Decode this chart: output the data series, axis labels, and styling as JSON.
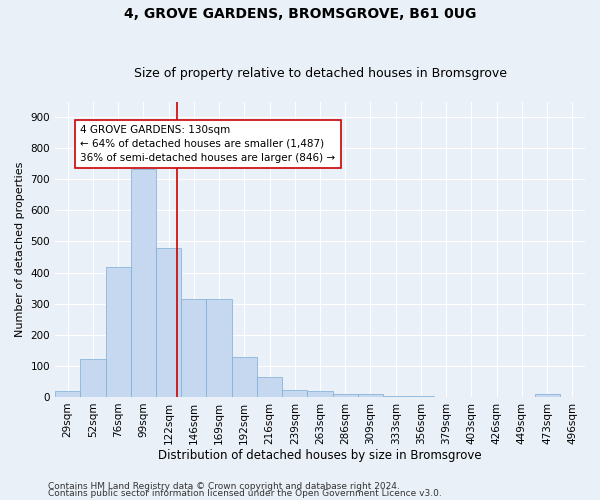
{
  "title1": "4, GROVE GARDENS, BROMSGROVE, B61 0UG",
  "title2": "Size of property relative to detached houses in Bromsgrove",
  "xlabel": "Distribution of detached houses by size in Bromsgrove",
  "ylabel": "Number of detached properties",
  "bar_color": "#c5d8f0",
  "bar_edge_color": "#7aadd4",
  "categories": [
    "29sqm",
    "52sqm",
    "76sqm",
    "99sqm",
    "122sqm",
    "146sqm",
    "169sqm",
    "192sqm",
    "216sqm",
    "239sqm",
    "263sqm",
    "286sqm",
    "309sqm",
    "333sqm",
    "356sqm",
    "379sqm",
    "403sqm",
    "426sqm",
    "449sqm",
    "473sqm",
    "496sqm"
  ],
  "values": [
    18,
    122,
    418,
    733,
    480,
    315,
    315,
    130,
    65,
    22,
    18,
    10,
    8,
    3,
    3,
    0,
    0,
    0,
    0,
    8,
    0
  ],
  "vline_x_index": 4.35,
  "vline_color": "#cc0000",
  "annotation_text": "4 GROVE GARDENS: 130sqm\n← 64% of detached houses are smaller (1,487)\n36% of semi-detached houses are larger (846) →",
  "annotation_box_color": "#ffffff",
  "annotation_box_edge": "#cc0000",
  "ylim": [
    0,
    950
  ],
  "yticks": [
    0,
    100,
    200,
    300,
    400,
    500,
    600,
    700,
    800,
    900
  ],
  "footer1": "Contains HM Land Registry data © Crown copyright and database right 2024.",
  "footer2": "Contains public sector information licensed under the Open Government Licence v3.0.",
  "bg_color": "#eaf0f8",
  "plot_bg_color": "#eaf0f8",
  "grid_color": "#ffffff",
  "title1_fontsize": 10,
  "title2_fontsize": 9,
  "ylabel_fontsize": 8,
  "xlabel_fontsize": 8.5,
  "tick_fontsize": 7.5,
  "footer_fontsize": 6.5,
  "ann_fontsize": 7.5
}
